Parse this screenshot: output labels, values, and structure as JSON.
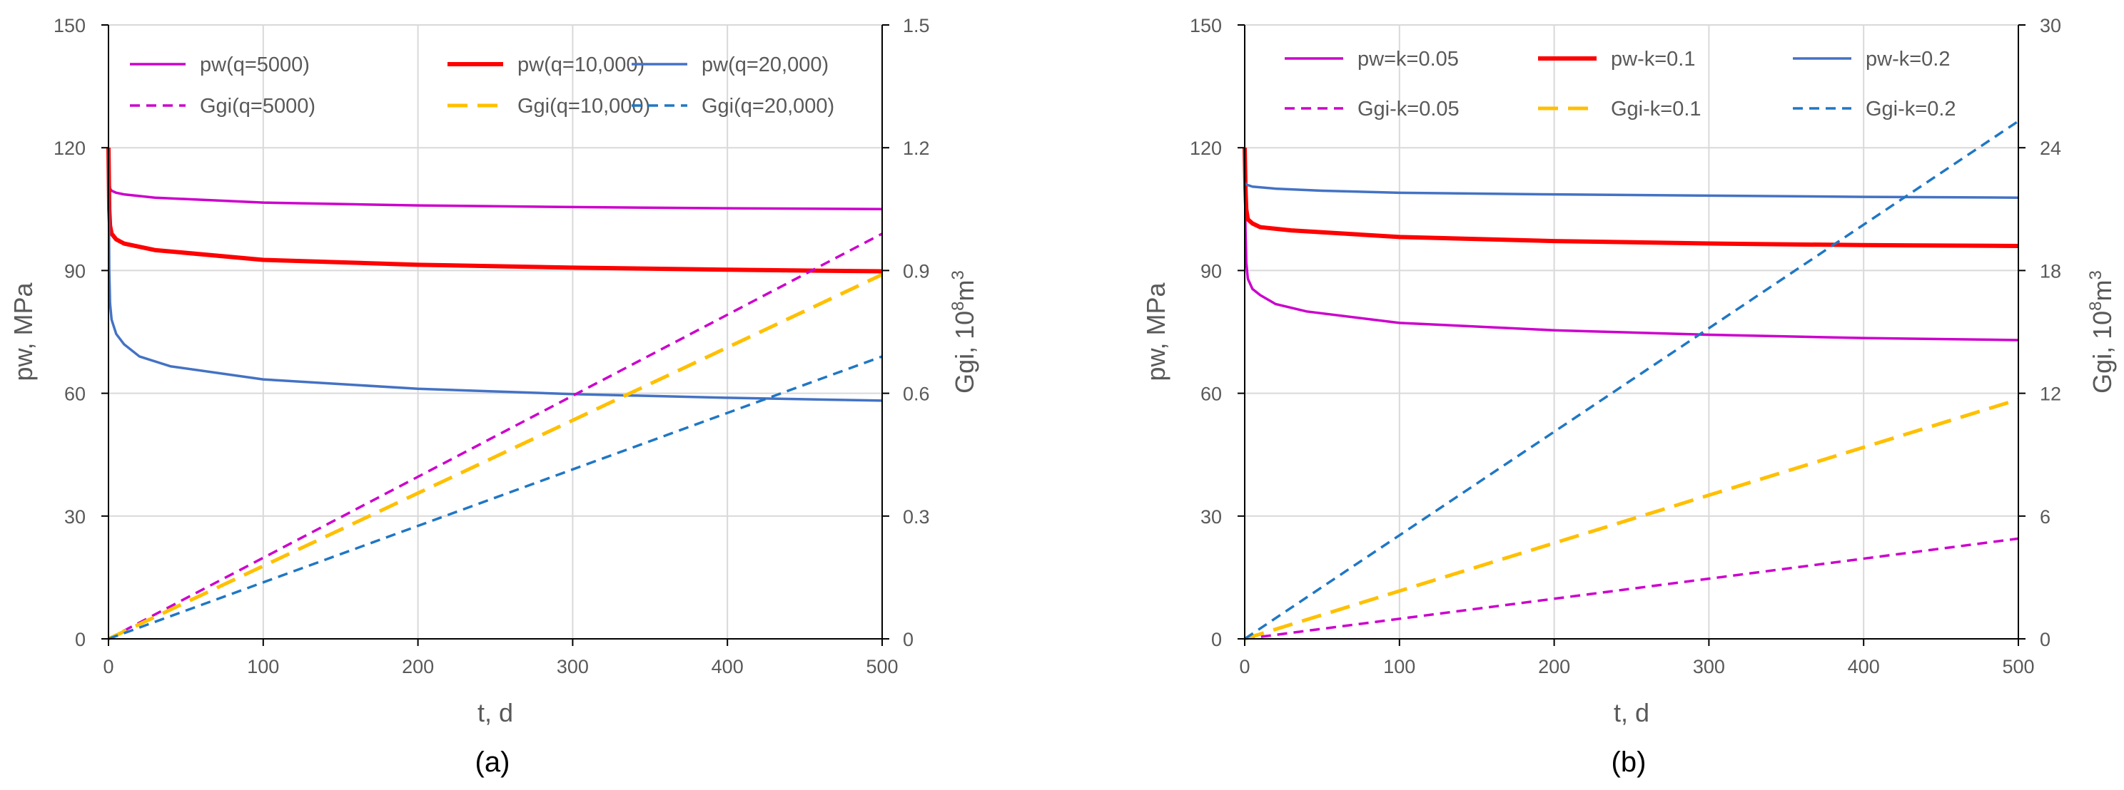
{
  "chart_data": [
    {
      "type": "line",
      "panel_label": "(a)",
      "xlabel": "t, d",
      "ylabel": "pw, MPa",
      "y2label": "Ggi, 10",
      "y2label_exp": "8",
      "y2label_unit": "m",
      "y2label_unit_exp": "3",
      "xlim": [
        0,
        500
      ],
      "ylim": [
        0,
        150
      ],
      "y2lim": [
        0,
        1.5
      ],
      "xticks": [
        0,
        100,
        200,
        300,
        400,
        500
      ],
      "yticks": [
        0,
        30,
        60,
        90,
        120,
        150
      ],
      "y2ticks": [
        0,
        0.3,
        0.6,
        0.9,
        1.2,
        1.5
      ],
      "y2tick_labels": [
        "0",
        "0.3",
        "0.6",
        "0.9",
        "1.2",
        "1.5"
      ],
      "grid": true,
      "legend_position": "top",
      "series": [
        {
          "name": "pw(q=5000)",
          "axis": "left",
          "style": "solid",
          "color": "#cc00cc",
          "width": 3.5,
          "x": [
            0,
            0.5,
            1,
            2,
            5,
            10,
            30,
            100,
            200,
            300,
            400,
            500
          ],
          "y": [
            120,
            112,
            110,
            109.5,
            109,
            108.6,
            107.8,
            106.6,
            105.9,
            105.5,
            105.2,
            105
          ]
        },
        {
          "name": "pw(q=10,000)",
          "axis": "left",
          "style": "solid",
          "color": "#ff0000",
          "width": 6,
          "x": [
            0,
            0.5,
            1,
            2,
            5,
            10,
            30,
            100,
            200,
            300,
            400,
            500
          ],
          "y": [
            120,
            105,
            101,
            99,
            97.6,
            96.6,
            95,
            92.6,
            91.4,
            90.7,
            90.2,
            89.8
          ]
        },
        {
          "name": "pw(q=20,000)",
          "axis": "left",
          "style": "solid",
          "color": "#4472c4",
          "width": 3.5,
          "x": [
            0,
            0.5,
            1,
            2,
            5,
            10,
            20,
            40,
            100,
            200,
            300,
            400,
            500
          ],
          "y": [
            120,
            90,
            82,
            78,
            74.5,
            72,
            69,
            66.6,
            63.4,
            61.1,
            59.8,
            58.9,
            58.2
          ]
        },
        {
          "name": "Ggi(q=5000)",
          "axis": "right",
          "style": "dash",
          "color": "#cc00cc",
          "width": 3.5,
          "x": [
            0,
            500
          ],
          "y": [
            0,
            0.99
          ]
        },
        {
          "name": "Ggi(q=10,000)",
          "axis": "right",
          "style": "dash-long",
          "color": "#ffc000",
          "width": 5,
          "x": [
            0,
            500
          ],
          "y": [
            0,
            0.89
          ]
        },
        {
          "name": "Ggi(q=20,000)",
          "axis": "right",
          "style": "dash",
          "color": "#1f77c4",
          "width": 3.5,
          "x": [
            0,
            500
          ],
          "y": [
            0,
            0.69
          ]
        }
      ]
    },
    {
      "type": "line",
      "panel_label": "(b)",
      "xlabel": "t, d",
      "ylabel": "pw, MPa",
      "y2label": "Ggi, 10",
      "y2label_exp": "8",
      "y2label_unit": "m",
      "y2label_unit_exp": "3",
      "xlim": [
        0,
        500
      ],
      "ylim": [
        0,
        150
      ],
      "y2lim": [
        0,
        30
      ],
      "xticks": [
        0,
        100,
        200,
        300,
        400,
        500
      ],
      "yticks": [
        0,
        30,
        60,
        90,
        120,
        150
      ],
      "y2ticks": [
        0,
        6,
        12,
        18,
        24,
        30
      ],
      "y2tick_labels": [
        "0",
        "6",
        "12",
        "18",
        "24",
        "30"
      ],
      "grid": true,
      "legend_position": "top",
      "series": [
        {
          "name": "pw=k=0.05",
          "axis": "left",
          "style": "solid",
          "color": "#cc00cc",
          "width": 3.5,
          "x": [
            0,
            0.5,
            1,
            2,
            5,
            10,
            20,
            40,
            100,
            200,
            300,
            400,
            500
          ],
          "y": [
            120,
            100,
            92,
            88,
            85.5,
            84,
            81.8,
            80,
            77.2,
            75.4,
            74.3,
            73.5,
            73
          ]
        },
        {
          "name": "pw-k=0.1",
          "axis": "left",
          "style": "solid",
          "color": "#ff0000",
          "width": 6,
          "x": [
            0,
            0.5,
            1,
            2,
            5,
            10,
            30,
            100,
            200,
            300,
            400,
            500
          ],
          "y": [
            120,
            110,
            105,
            102.5,
            101.5,
            100.6,
            99.8,
            98.2,
            97.2,
            96.6,
            96.2,
            96
          ]
        },
        {
          "name": "pw-k=0.2",
          "axis": "left",
          "style": "solid",
          "color": "#4472c4",
          "width": 3.5,
          "x": [
            0,
            1,
            5,
            20,
            50,
            100,
            200,
            300,
            400,
            500
          ],
          "y": [
            111.5,
            111,
            110.5,
            110,
            109.5,
            109,
            108.6,
            108.3,
            108,
            107.8
          ]
        },
        {
          "name": "Ggi-k=0.05",
          "axis": "right",
          "style": "dash",
          "color": "#cc00cc",
          "width": 3.5,
          "x": [
            0,
            500
          ],
          "y": [
            0,
            4.9
          ]
        },
        {
          "name": "Ggi-k=0.1",
          "axis": "right",
          "style": "dash-long",
          "color": "#ffc000",
          "width": 5,
          "x": [
            0,
            500
          ],
          "y": [
            0,
            11.7
          ]
        },
        {
          "name": "Ggi-k=0.2",
          "axis": "right",
          "style": "dash",
          "color": "#1f77c4",
          "width": 3.5,
          "x": [
            0,
            500
          ],
          "y": [
            0,
            25.3
          ]
        }
      ]
    }
  ]
}
